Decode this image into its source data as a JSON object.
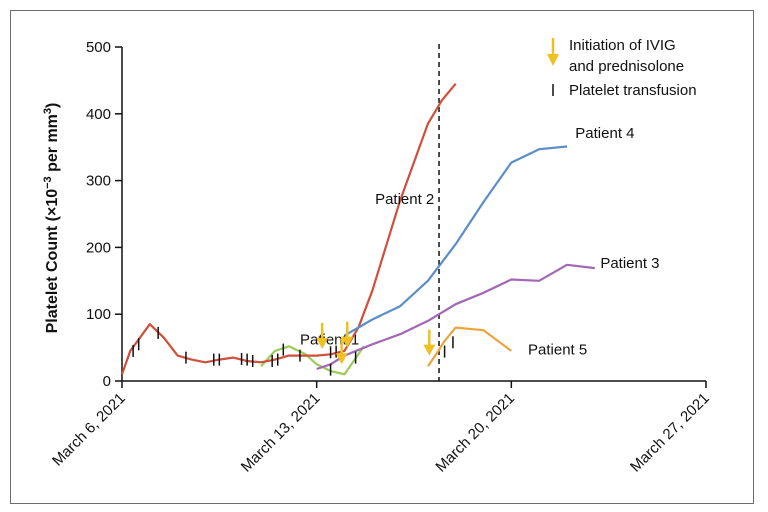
{
  "chart_data": {
    "type": "line",
    "title": "",
    "ylabel": "Platelet Count (×10",
    "ylabel_exponent": "−3",
    "ylabel_suffix": " per mm",
    "ylabel_suffix_exponent": "3",
    "ylabel_close": ")",
    "xlabel": "",
    "x_start_date": "March 6, 2021",
    "xlim": [
      0,
      21
    ],
    "ylim": [
      0,
      500
    ],
    "yticks": [
      0,
      100,
      200,
      300,
      400,
      500
    ],
    "xtick_labels": [
      "March 6, 2021",
      "March 13, 2021",
      "March 20, 2021",
      "March 27, 2021"
    ],
    "xtick_positions": [
      0,
      7,
      14,
      21
    ],
    "grid": false,
    "legend_position": "top-right",
    "legend": {
      "arrow_label_line1": "Initiation of IVIG",
      "arrow_label_line2": "and prednisolone",
      "tick_label": "Platelet transfusion"
    },
    "vertical_reference_line_x": 11.4,
    "series": [
      {
        "name": "Patient 1",
        "color": "#9bcb5a",
        "points": [
          [
            5,
            22
          ],
          [
            5.5,
            45
          ],
          [
            6,
            52
          ],
          [
            6.6,
            40
          ],
          [
            7,
            25
          ],
          [
            7.5,
            15
          ],
          [
            8,
            10
          ],
          [
            8.7,
            52
          ]
        ],
        "label_point": [
          6.4,
          55
        ],
        "transfusions": [
          [
            5.8,
            47
          ],
          [
            7.5,
            17
          ],
          [
            8.4,
            35
          ]
        ],
        "ivig_arrows": []
      },
      {
        "name": "Patient 2",
        "color": "#d04f3a",
        "points": [
          [
            0,
            10
          ],
          [
            0.3,
            45
          ],
          [
            1,
            85
          ],
          [
            1.5,
            65
          ],
          [
            2,
            38
          ],
          [
            2.5,
            32
          ],
          [
            3,
            28
          ],
          [
            3.5,
            32
          ],
          [
            4,
            35
          ],
          [
            4.5,
            30
          ],
          [
            5,
            28
          ],
          [
            5.5,
            32
          ],
          [
            6,
            38
          ],
          [
            6.5,
            38
          ],
          [
            7,
            38
          ],
          [
            7.5,
            40
          ],
          [
            8,
            45
          ],
          [
            8.5,
            80
          ],
          [
            9,
            135
          ],
          [
            10,
            270
          ],
          [
            11,
            385
          ],
          [
            11.5,
            420
          ],
          [
            12,
            445
          ]
        ],
        "label_point": [
          9.1,
          265
        ],
        "transfusions": [
          [
            0.4,
            45
          ],
          [
            0.6,
            55
          ],
          [
            1.3,
            72
          ],
          [
            2.3,
            35
          ],
          [
            3.3,
            32
          ],
          [
            3.5,
            32
          ],
          [
            4.3,
            33
          ],
          [
            4.5,
            32
          ],
          [
            4.7,
            30
          ],
          [
            5.4,
            30
          ],
          [
            5.6,
            32
          ],
          [
            6.4,
            38
          ],
          [
            7.5,
            43
          ],
          [
            7.7,
            44
          ]
        ],
        "ivig_arrows": [
          [
            7.2,
            48
          ],
          [
            8.1,
            50
          ],
          [
            7.9,
            25
          ]
        ]
      },
      {
        "name": "Patient 3",
        "color": "#a267b6",
        "points": [
          [
            7,
            18
          ],
          [
            7.5,
            25
          ],
          [
            8,
            38
          ],
          [
            9,
            55
          ],
          [
            10,
            70
          ],
          [
            11,
            90
          ],
          [
            12,
            115
          ],
          [
            13,
            132
          ],
          [
            14,
            152
          ],
          [
            15,
            150
          ],
          [
            16,
            174
          ],
          [
            17,
            169
          ]
        ],
        "label_point": [
          17.2,
          169
        ],
        "transfusions": [],
        "ivig_arrows": []
      },
      {
        "name": "Patient 4",
        "color": "#5b8ec8",
        "points": [
          [
            8,
            68
          ],
          [
            9,
            92
          ],
          [
            10,
            112
          ],
          [
            11,
            150
          ],
          [
            12,
            205
          ],
          [
            13,
            268
          ],
          [
            14,
            327
          ],
          [
            15,
            347
          ],
          [
            16,
            351
          ]
        ],
        "label_point": [
          16.3,
          364
        ],
        "transfusions": [],
        "ivig_arrows": []
      },
      {
        "name": "Patient 5",
        "color": "#eba43d",
        "points": [
          [
            11,
            22
          ],
          [
            11.3,
            40
          ],
          [
            11.6,
            60
          ],
          [
            12,
            80
          ],
          [
            13,
            76
          ],
          [
            14,
            45
          ]
        ],
        "label_point": [
          14.6,
          40
        ],
        "transfusions": [
          [
            11.6,
            44
          ],
          [
            11.9,
            58
          ]
        ],
        "ivig_arrows": [
          [
            11.05,
            38
          ]
        ]
      }
    ]
  }
}
